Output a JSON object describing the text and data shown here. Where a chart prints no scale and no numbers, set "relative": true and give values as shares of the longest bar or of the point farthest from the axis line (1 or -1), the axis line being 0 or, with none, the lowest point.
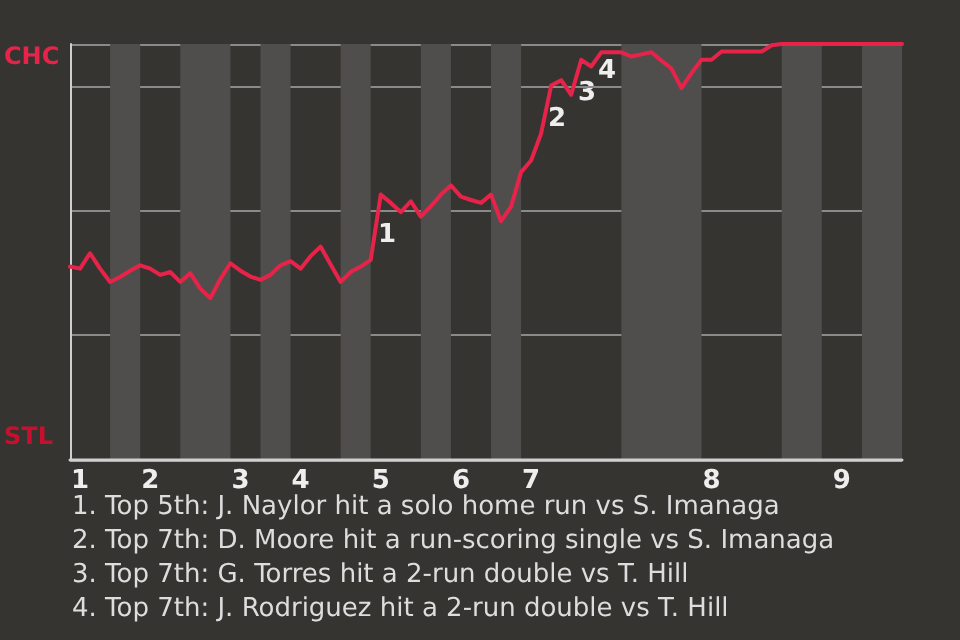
{
  "chart_data": {
    "type": "line",
    "relative": true,
    "categories": [
      null,
      "1",
      null,
      null,
      null,
      null,
      null,
      null,
      "2",
      null,
      null,
      null,
      null,
      null,
      null,
      null,
      null,
      "3",
      null,
      null,
      null,
      null,
      null,
      "4",
      null,
      null,
      null,
      null,
      null,
      null,
      null,
      "5",
      null,
      null,
      null,
      null,
      null,
      null,
      null,
      "6",
      null,
      null,
      null,
      null,
      null,
      null,
      "7",
      null,
      null,
      null,
      null,
      null,
      null,
      null,
      null,
      null,
      null,
      null,
      null,
      null,
      null,
      null,
      null,
      null,
      "8",
      null,
      null,
      null,
      null,
      null,
      null,
      null,
      null,
      null,
      null,
      null,
      null,
      "9",
      null,
      null,
      null,
      null,
      null,
      null
    ],
    "series": [
      {
        "color": "#e8234a",
        "values": [
          0.465,
          0.46,
          0.497,
          0.46,
          0.428,
          0.44,
          0.455,
          0.468,
          0.46,
          0.445,
          0.452,
          0.428,
          0.449,
          0.412,
          0.389,
          0.435,
          0.473,
          0.455,
          0.441,
          0.433,
          0.445,
          0.468,
          0.478,
          0.46,
          0.49,
          0.513,
          0.47,
          0.428,
          0.452,
          0.465,
          0.481,
          0.638,
          0.618,
          0.596,
          0.622,
          0.585,
          0.61,
          0.638,
          0.66,
          0.633,
          0.625,
          0.618,
          0.638,
          0.574,
          0.609,
          0.692,
          0.72,
          0.785,
          0.9,
          0.913,
          0.878,
          0.962,
          0.946,
          0.98,
          0.98,
          0.98,
          0.97,
          0.975,
          0.98,
          0.96,
          0.941,
          0.894,
          0.93,
          0.962,
          0.962,
          0.982,
          0.982,
          0.982,
          0.982,
          0.982,
          0.997,
          1,
          1,
          1,
          1,
          1,
          1,
          1,
          1,
          1,
          1,
          1,
          1,
          1
        ]
      }
    ],
    "grid": "y",
    "marker": "none",
    "line_style": "solid",
    "annotations": [
      "CHC",
      "STL",
      "1",
      "2",
      "3",
      "4",
      "1. Top 5th: J. Naylor hit a solo home run vs S. Imanaga",
      "2. Top 7th: D. Moore hit a run-scoring single vs S. Imanaga",
      "3. Top 7th: G. Torres hit a 2-run double vs T. Hill",
      "4. Top 7th: J. Rodriguez hit a 2-run double vs T. Hill"
    ]
  }
}
